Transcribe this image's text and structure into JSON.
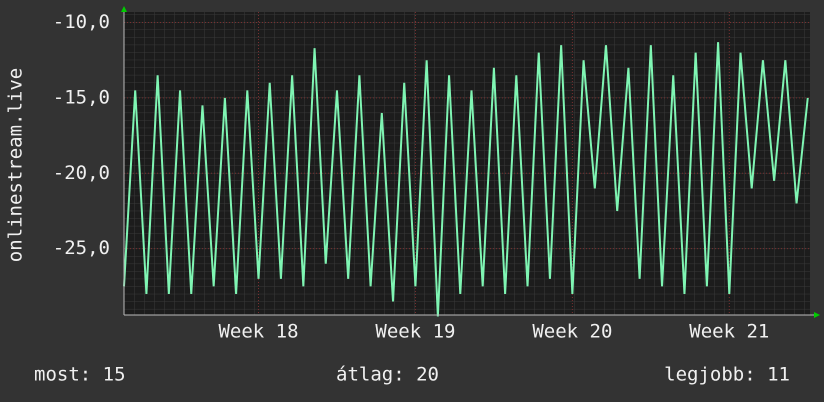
{
  "chart_data": {
    "type": "line",
    "y_label": "onlinestream.live",
    "x": [
      0,
      0.5,
      1,
      1.5,
      2,
      2.5,
      3,
      3.5,
      4,
      4.5,
      5,
      5.5,
      6,
      6.5,
      7,
      7.5,
      8,
      8.5,
      9,
      9.5,
      10,
      10.5,
      11,
      11.5,
      12,
      12.5,
      13,
      13.5,
      14,
      14.5,
      15,
      15.5,
      16,
      16.5,
      17,
      17.5,
      18,
      18.5,
      19,
      19.5,
      20,
      20.5,
      21,
      21.5,
      22,
      22.5,
      23,
      23.5,
      24,
      24.5,
      25,
      25.5,
      26,
      26.5,
      27,
      27.5,
      28,
      28.5,
      29,
      29.5,
      30,
      30.5
    ],
    "series": [
      {
        "color": "#7ff5b3",
        "values": [
          -27.5,
          -14.5,
          -28,
          -13.5,
          -28,
          -14.5,
          -28,
          -15.5,
          -27.5,
          -15,
          -28,
          -14.5,
          -27,
          -14,
          -27,
          -13.5,
          -27.5,
          -11.7,
          -26,
          -14.5,
          -27,
          -13.5,
          -27.5,
          -16,
          -28.5,
          -14,
          -27.5,
          -12.5,
          -29.5,
          -13.5,
          -28,
          -14.5,
          -27.5,
          -13,
          -28,
          -13.5,
          -27.5,
          -12,
          -27,
          -11.5,
          -28,
          -12.5,
          -21,
          -11.5,
          -22.5,
          -13,
          -27,
          -11.5,
          -27.5,
          -13.5,
          -28,
          -12,
          -27.5,
          -11.3,
          -28,
          -12,
          -21,
          -12.5,
          -20.5,
          -12.5,
          -22,
          -15
        ]
      }
    ],
    "xlim": [
      0,
      30.6
    ],
    "xticks": [
      {
        "value": 6,
        "label": "Week 18"
      },
      {
        "value": 13,
        "label": "Week 19"
      },
      {
        "value": 20,
        "label": "Week 20"
      },
      {
        "value": 27,
        "label": "Week 21"
      }
    ],
    "ylim": [
      -29.4,
      -9.3
    ],
    "yticks": [
      {
        "value": -10,
        "label": "-10,0"
      },
      {
        "value": -15,
        "label": "-15,0"
      },
      {
        "value": -20,
        "label": "-20,0"
      },
      {
        "value": -25,
        "label": "-25,0"
      }
    ],
    "grid": true,
    "footer": [
      "most: 15",
      "átlag: 20",
      "legjobb: 11"
    ]
  }
}
